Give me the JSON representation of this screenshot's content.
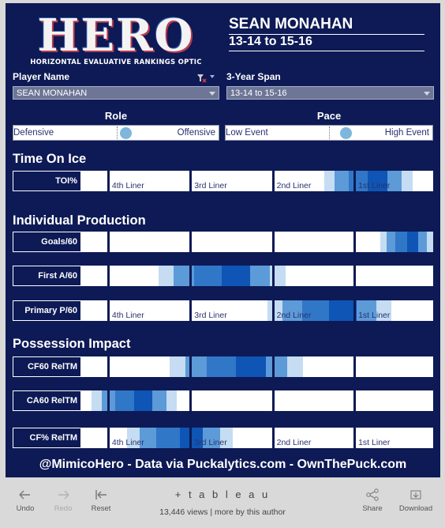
{
  "logo": {
    "word": "HERO",
    "subtitle": "HORIZONTAL EVALUATIVE RANKINGS OPTIC"
  },
  "header": {
    "player": "SEAN MONAHAN",
    "span": "13-14 to 15-16"
  },
  "filters": {
    "player_label": "Player Name",
    "player_value": "SEAN MONAHAN",
    "span_label": "3-Year Span",
    "span_value": "13-14 to 15-16"
  },
  "toggles": {
    "role": {
      "title": "Role",
      "left": "Defensive",
      "right": "Offensive"
    },
    "pace": {
      "title": "Pace",
      "left": "Low Event",
      "right": "High Event"
    }
  },
  "sections": {
    "toi": "Time On Ice",
    "production": "Individual Production",
    "possession": "Possession Impact"
  },
  "tier_labels": [
    "4th Liner",
    "3rd Liner",
    "2nd Liner",
    "1st Liner"
  ],
  "rows": [
    {
      "label": "TOI%",
      "show_tiers": true,
      "range_start": 0.69,
      "range_end": 0.94
    },
    {
      "label": "Goals/60",
      "show_tiers": false,
      "range_start": 0.85,
      "range_end": 1.0
    },
    {
      "label": "First A/60",
      "show_tiers": false,
      "range_start": 0.22,
      "range_end": 0.58
    },
    {
      "label": "Primary P/60",
      "show_tiers": true,
      "range_start": 0.53,
      "range_end": 0.88
    },
    {
      "label": "CF60 RelTM",
      "show_tiers": false,
      "range_start": 0.25,
      "range_end": 0.63
    },
    {
      "label": "CA60 RelTM",
      "show_tiers": false,
      "range_start": 0.03,
      "range_end": 0.27
    },
    {
      "label": "CF% RelTM",
      "show_tiers": true,
      "range_start": 0.13,
      "range_end": 0.43
    }
  ],
  "colors": {
    "dashboard_bg": "#0d1a55",
    "band": [
      "#c5dcf2",
      "#9bc2e8",
      "#5d9ad8",
      "#3177c8",
      "#0f55b5"
    ]
  },
  "footer": {
    "credit": "@MimicoHero - Data via Puckalytics.com - OwnThePuck.com"
  },
  "toolbar": {
    "undo": "Undo",
    "redo": "Redo",
    "reset": "Reset",
    "brand": "+ t a b l e a u",
    "views": "13,446 views | more by this author",
    "share": "Share",
    "download": "Download"
  }
}
